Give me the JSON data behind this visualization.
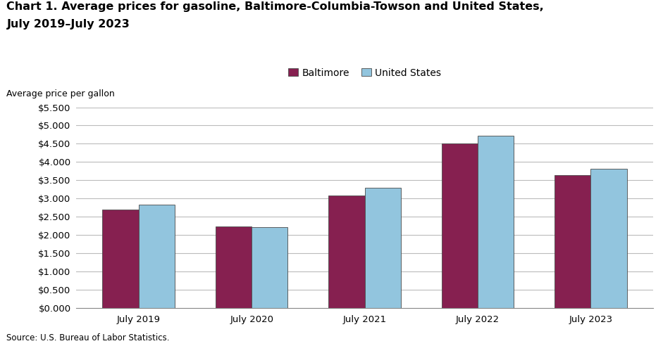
{
  "title_line1": "Chart 1. Average prices for gasoline, Baltimore-Columbia-Towson and United States,",
  "title_line2": "July 2019–July 2023",
  "ylabel": "Average price per gallon",
  "source": "Source: U.S. Bureau of Labor Statistics.",
  "categories": [
    "July 2019",
    "July 2020",
    "July 2021",
    "July 2022",
    "July 2023"
  ],
  "baltimore_values": [
    2.698,
    2.228,
    3.085,
    4.503,
    3.648
  ],
  "us_values": [
    2.836,
    2.218,
    3.303,
    4.724,
    3.818
  ],
  "baltimore_color": "#862050",
  "us_color": "#92C5DE",
  "bar_edge_color": "#4a4a4a",
  "legend_labels": [
    "Baltimore",
    "United States"
  ],
  "ylim": [
    0,
    5.5
  ],
  "yticks": [
    0.0,
    0.5,
    1.0,
    1.5,
    2.0,
    2.5,
    3.0,
    3.5,
    4.0,
    4.5,
    5.0,
    5.5
  ],
  "title_fontsize": 11.5,
  "tick_fontsize": 9.5,
  "legend_fontsize": 10,
  "source_fontsize": 8.5,
  "bar_width": 0.32,
  "grid_color": "#bbbbbb",
  "background_color": "#ffffff"
}
